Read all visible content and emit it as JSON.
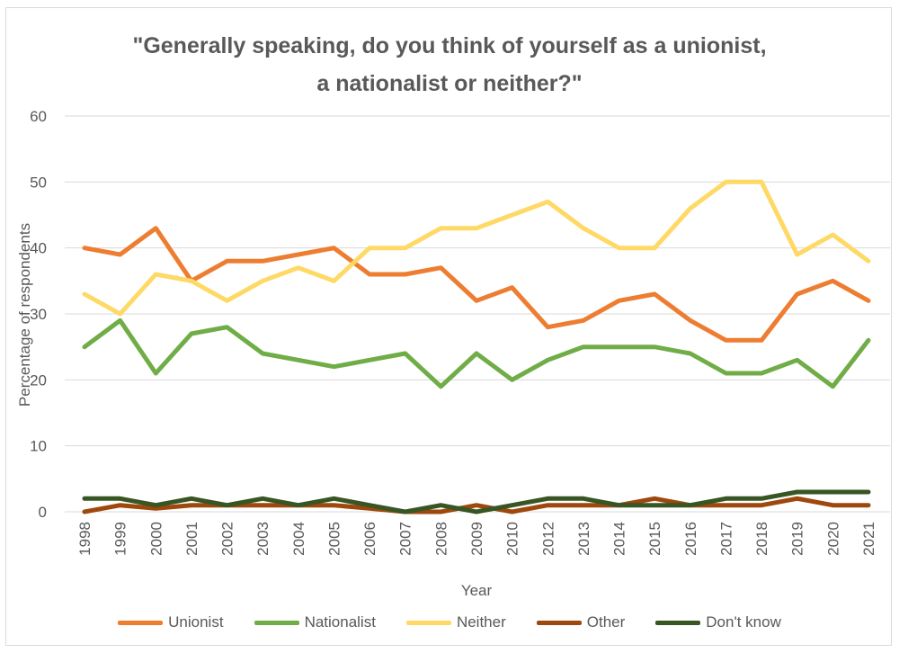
{
  "chart_data": {
    "type": "line",
    "title_line1": "\"Generally speaking, do you think of yourself as a unionist,",
    "title_line2": "a nationalist or neither?\"",
    "xlabel": "Year",
    "ylabel": "Percentage of respondents",
    "ylim": [
      0,
      60
    ],
    "yticks": [
      "0",
      "10",
      "20",
      "30",
      "40",
      "50",
      "60"
    ],
    "grid": true,
    "legend_position": "bottom",
    "categories": [
      "1998",
      "1999",
      "2000",
      "2001",
      "2002",
      "2003",
      "2004",
      "2005",
      "2006",
      "2007",
      "2008",
      "2009",
      "2010",
      "2012",
      "2013",
      "2014",
      "2015",
      "2016",
      "2017",
      "2018",
      "2019",
      "2020",
      "2021"
    ],
    "series": [
      {
        "name": "Unionist",
        "color": "#ed7d31",
        "values": [
          40,
          39,
          43,
          35,
          38,
          38,
          39,
          40,
          36,
          36,
          37,
          32,
          34,
          28,
          29,
          32,
          33,
          29,
          26,
          26,
          33,
          35,
          32
        ]
      },
      {
        "name": "Nationalist",
        "color": "#70ad47",
        "values": [
          25,
          29,
          21,
          27,
          28,
          24,
          23,
          22,
          23,
          24,
          19,
          24,
          20,
          23,
          25,
          25,
          25,
          24,
          21,
          21,
          23,
          19,
          26
        ]
      },
      {
        "name": "Neither",
        "color": "#ffd966",
        "values": [
          33,
          30,
          36,
          35,
          32,
          35,
          37,
          35,
          40,
          40,
          43,
          43,
          45,
          47,
          43,
          40,
          40,
          46,
          50,
          50,
          39,
          42,
          38
        ]
      },
      {
        "name": "Other",
        "color": "#9e480e",
        "values": [
          0,
          1,
          0.5,
          1,
          1,
          1,
          1,
          1,
          0.5,
          0,
          0,
          1,
          0,
          1,
          1,
          1,
          2,
          1,
          1,
          1,
          2,
          1,
          1
        ]
      },
      {
        "name": "Don't know",
        "color": "#375623",
        "values": [
          2,
          2,
          1,
          2,
          1,
          2,
          1,
          2,
          1,
          0,
          1,
          0,
          1,
          2,
          2,
          1,
          1,
          1,
          2,
          2,
          3,
          3,
          3
        ]
      }
    ]
  }
}
